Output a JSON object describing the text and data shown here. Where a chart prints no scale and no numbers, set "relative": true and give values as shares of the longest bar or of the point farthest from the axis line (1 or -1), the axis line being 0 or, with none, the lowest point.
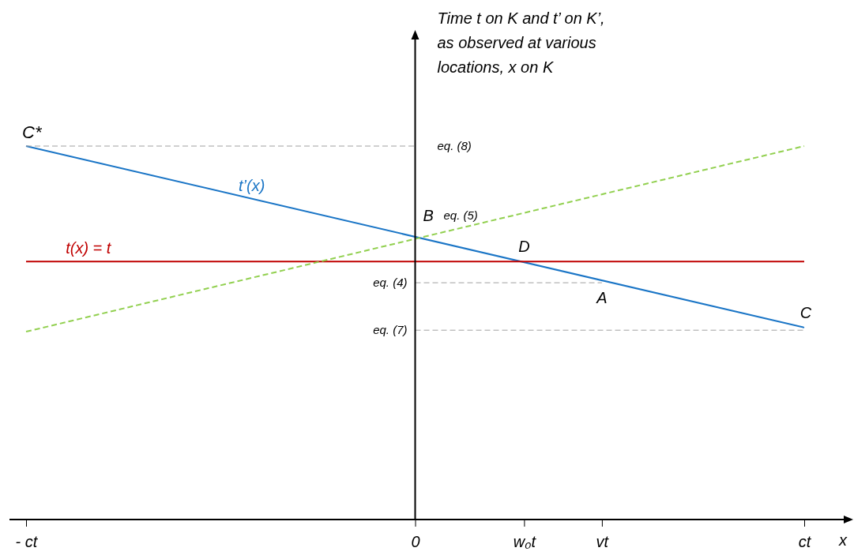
{
  "chart_data": {
    "type": "line",
    "relative": true,
    "ylabel": "Time t on K and t’ on K’, as observed at various locations, x on K",
    "xlabel": "x",
    "categories": [
      "- ct",
      null,
      null,
      null,
      null,
      null,
      null,
      null,
      null,
      null,
      null,
      null,
      null,
      null,
      null,
      null,
      null,
      null,
      null,
      null,
      null,
      null,
      null,
      null,
      null,
      "0",
      null,
      null,
      null,
      null,
      null,
      null,
      "w₀t",
      null,
      null,
      null,
      null,
      "vt",
      null,
      null,
      null,
      null,
      null,
      null,
      null,
      null,
      null,
      null,
      null,
      null,
      "ct"
    ],
    "series": [
      {
        "name": "t’(x)",
        "color": "#1a75c6",
        "x": [
          "- ct",
          "ct"
        ],
        "values": [
          1,
          0.514
        ],
        "line_style": "solid"
      },
      {
        "name": "t(x) = t",
        "color": "#c00000",
        "x": [
          "- ct",
          "ct"
        ],
        "values": [
          0.691,
          0.691
        ],
        "line_style": "solid"
      },
      {
        "color": "#92d050",
        "x": [
          "- ct",
          "ct"
        ],
        "values": [
          0.503,
          1
        ],
        "line_style": "dashed"
      },
      {
        "color": "#a0a0a0",
        "x": [
          "- ct",
          "0"
        ],
        "values": [
          1,
          1
        ],
        "line_style": "dashed"
      },
      {
        "color": "#a0a0a0",
        "x": [
          "0",
          "vt"
        ],
        "values": [
          0.634,
          0.634
        ],
        "line_style": "dashed"
      },
      {
        "color": "#a0a0a0",
        "x": [
          "0",
          "ct"
        ],
        "values": [
          0.507,
          0.507
        ],
        "line_style": "dashed"
      }
    ],
    "annotations": [
      {
        "text": "C*",
        "x": "- ct",
        "y": 1
      },
      {
        "text": "B",
        "x": "0",
        "y": 0.757
      },
      {
        "text": "D",
        "x": "w₀t",
        "y": 0.691
      },
      {
        "text": "A",
        "x": "vt",
        "y": 0.634
      },
      {
        "text": "C",
        "x": "ct",
        "y": 0.514
      },
      {
        "text": "eq. (8)",
        "x": "0",
        "y": 1
      },
      {
        "text": "eq. (5)",
        "x": "0",
        "y": 0.757
      },
      {
        "text": "eq. (4)",
        "x": "0",
        "y": 0.634
      },
      {
        "text": "eq. (7)",
        "x": "0",
        "y": 0.507
      }
    ]
  }
}
